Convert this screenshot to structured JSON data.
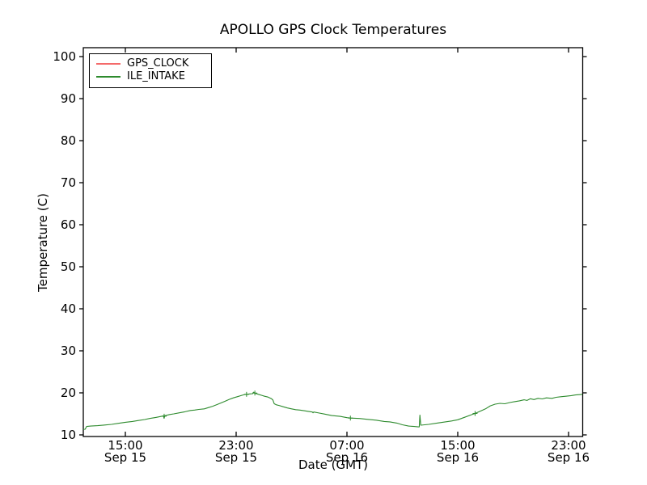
{
  "chart_data": {
    "type": "line",
    "title": "APOLLO GPS Clock Temperatures",
    "xlabel": "Date (GMT)",
    "ylabel": "Temperature (C)",
    "x_unit": "hours after Sep 15 15:00 GMT",
    "xlim": [
      -3.04,
      33.0
    ],
    "ylim": [
      9.6,
      102.1
    ],
    "grid": false,
    "legend_position": "upper left",
    "axis_color": "#000000",
    "yticks": [
      10,
      20,
      30,
      40,
      50,
      60,
      70,
      80,
      90,
      100
    ],
    "xticks": [
      {
        "h": 0,
        "time": "15:00",
        "date": "Sep 15"
      },
      {
        "h": 8,
        "time": "23:00",
        "date": "Sep 15"
      },
      {
        "h": 16,
        "time": "07:00",
        "date": "Sep 16"
      },
      {
        "h": 24,
        "time": "15:00",
        "date": "Sep 16"
      },
      {
        "h": 32,
        "time": "23:00",
        "date": "Sep 16"
      }
    ],
    "series": [
      {
        "name": "GPS_CLOCK",
        "color": "#f46a6a",
        "points": []
      },
      {
        "name": "ILE_INTAKE",
        "color": "#2e8b2e",
        "points": [
          [
            -3.04,
            11.3
          ],
          [
            -2.9,
            11.35
          ],
          [
            -2.8,
            12.0
          ],
          [
            -2.5,
            12.1
          ],
          [
            -2.0,
            12.2
          ],
          [
            -1.5,
            12.35
          ],
          [
            -1.0,
            12.5
          ],
          [
            -0.5,
            12.75
          ],
          [
            0,
            13.0
          ],
          [
            0.5,
            13.2
          ],
          [
            0.9,
            13.4
          ],
          [
            1.4,
            13.65
          ],
          [
            1.75,
            13.9
          ],
          [
            2.2,
            14.15
          ],
          [
            2.6,
            14.4
          ],
          [
            2.75,
            14.5
          ],
          [
            2.8,
            13.95
          ],
          [
            2.85,
            14.55
          ],
          [
            3.2,
            14.85
          ],
          [
            3.5,
            15.0
          ],
          [
            3.9,
            15.25
          ],
          [
            4.3,
            15.5
          ],
          [
            4.7,
            15.8
          ],
          [
            5.0,
            15.9
          ],
          [
            5.3,
            16.05
          ],
          [
            5.7,
            16.2
          ],
          [
            6.0,
            16.5
          ],
          [
            6.3,
            16.8
          ],
          [
            6.6,
            17.2
          ],
          [
            6.9,
            17.6
          ],
          [
            7.2,
            18.0
          ],
          [
            7.5,
            18.45
          ],
          [
            7.8,
            18.8
          ],
          [
            8.1,
            19.1
          ],
          [
            8.4,
            19.4
          ],
          [
            8.6,
            19.6
          ],
          [
            8.8,
            19.65
          ],
          [
            9.0,
            19.75
          ],
          [
            9.2,
            19.8
          ],
          [
            9.25,
            20.15
          ],
          [
            9.35,
            19.95
          ],
          [
            9.6,
            19.65
          ],
          [
            9.85,
            19.4
          ],
          [
            10.05,
            19.2
          ],
          [
            10.3,
            19.0
          ],
          [
            10.55,
            18.6
          ],
          [
            10.65,
            18.3
          ],
          [
            10.75,
            17.4
          ],
          [
            10.9,
            17.15
          ],
          [
            11.1,
            17.0
          ],
          [
            11.4,
            16.7
          ],
          [
            11.7,
            16.4
          ],
          [
            12.0,
            16.2
          ],
          [
            12.3,
            16.0
          ],
          [
            12.6,
            15.9
          ],
          [
            12.9,
            15.75
          ],
          [
            13.2,
            15.6
          ],
          [
            13.5,
            15.45
          ],
          [
            13.55,
            15.25
          ],
          [
            13.6,
            15.45
          ],
          [
            14.0,
            15.2
          ],
          [
            14.4,
            14.95
          ],
          [
            14.9,
            14.6
          ],
          [
            15.5,
            14.4
          ],
          [
            16.0,
            14.1
          ],
          [
            16.25,
            14.0
          ],
          [
            16.9,
            13.9
          ],
          [
            17.5,
            13.7
          ],
          [
            18.1,
            13.5
          ],
          [
            18.7,
            13.2
          ],
          [
            19.1,
            13.1
          ],
          [
            19.6,
            12.8
          ],
          [
            20.0,
            12.4
          ],
          [
            20.45,
            12.1
          ],
          [
            20.85,
            12.0
          ],
          [
            21.15,
            11.9
          ],
          [
            21.22,
            11.9
          ],
          [
            21.27,
            14.7
          ],
          [
            21.33,
            12.3
          ],
          [
            21.9,
            12.5
          ],
          [
            22.5,
            12.8
          ],
          [
            23.1,
            13.1
          ],
          [
            23.55,
            13.3
          ],
          [
            24.0,
            13.6
          ],
          [
            24.5,
            14.2
          ],
          [
            25.0,
            14.8
          ],
          [
            25.25,
            15.1
          ],
          [
            25.6,
            15.6
          ],
          [
            26.0,
            16.2
          ],
          [
            26.35,
            16.9
          ],
          [
            26.7,
            17.3
          ],
          [
            27.05,
            17.5
          ],
          [
            27.4,
            17.4
          ],
          [
            27.75,
            17.7
          ],
          [
            28.1,
            17.9
          ],
          [
            28.45,
            18.1
          ],
          [
            28.8,
            18.35
          ],
          [
            29.0,
            18.2
          ],
          [
            29.25,
            18.6
          ],
          [
            29.5,
            18.4
          ],
          [
            29.8,
            18.7
          ],
          [
            30.1,
            18.55
          ],
          [
            30.4,
            18.8
          ],
          [
            30.8,
            18.7
          ],
          [
            31.1,
            18.95
          ],
          [
            31.5,
            19.1
          ],
          [
            31.8,
            19.2
          ],
          [
            32.2,
            19.35
          ],
          [
            32.5,
            19.5
          ],
          [
            32.9,
            19.6
          ],
          [
            33.0,
            19.7
          ]
        ],
        "glitch_markers": [
          [
            2.8,
            14.45
          ],
          [
            8.75,
            19.65
          ],
          [
            9.35,
            19.95
          ],
          [
            16.25,
            14.0
          ],
          [
            25.25,
            15.1
          ]
        ]
      }
    ]
  }
}
